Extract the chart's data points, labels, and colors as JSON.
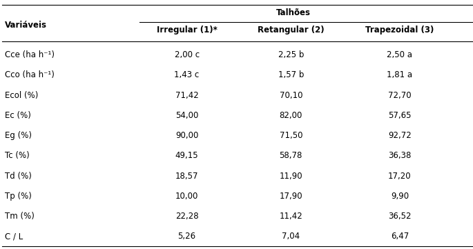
{
  "col_header_row1": "Talhões",
  "col_headers": [
    "Irregular (1)*",
    "Retangular (2)",
    "Trapezoidal (3)"
  ],
  "row_header": "Variáveis",
  "rows": [
    {
      "var": "Cce (ha h⁻¹)",
      "c1": "2,00 c",
      "c2": "2,25 b",
      "c3": "2,50 a"
    },
    {
      "var": "Cco (ha h⁻¹)",
      "c1": "1,43 c",
      "c2": "1,57 b",
      "c3": "1,81 a"
    },
    {
      "var": "Ecol (%)",
      "c1": "71,42",
      "c2": "70,10",
      "c3": "72,70"
    },
    {
      "var": "Ec (%)",
      "c1": "54,00",
      "c2": "82,00",
      "c3": "57,65"
    },
    {
      "var": "Eg (%)",
      "c1": "90,00",
      "c2": "71,50",
      "c3": "92,72"
    },
    {
      "var": "Tc (%)",
      "c1": "49,15",
      "c2": "58,78",
      "c3": "36,38"
    },
    {
      "var": "Td (%)",
      "c1": "18,57",
      "c2": "11,90",
      "c3": "17,20"
    },
    {
      "var": "Tp (%)",
      "c1": "10,00",
      "c2": "17,90",
      "c3": "9,90"
    },
    {
      "var": "Tm (%)",
      "c1": "22,28",
      "c2": "11,42",
      "c3": "36,52"
    },
    {
      "var": "C / L",
      "c1": "5,26",
      "c2": "7,04",
      "c3": "6,47"
    }
  ],
  "bg_color": "#ffffff",
  "text_color": "#000000",
  "font_size": 8.5,
  "header_font_size": 8.5,
  "figwidth": 6.85,
  "figheight": 3.61,
  "dpi": 100
}
